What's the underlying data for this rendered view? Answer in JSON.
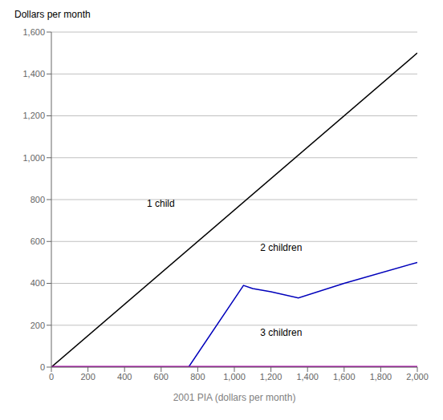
{
  "chart_data": {
    "type": "line",
    "x_label": "2001 PIA (dollars per month)",
    "y_label": "Dollars per month",
    "xlim": [
      0,
      2000
    ],
    "ylim": [
      0,
      1600
    ],
    "xticks": [
      0,
      200,
      400,
      600,
      800,
      {
        "value": 1000,
        "label": "1,000"
      },
      {
        "value": 1200,
        "label": "1,200"
      },
      {
        "value": 1400,
        "label": "1,400"
      },
      {
        "value": 1600,
        "label": "1,600"
      },
      {
        "value": 1800,
        "label": "1,800"
      },
      {
        "value": 2000,
        "label": "2,000"
      }
    ],
    "yticks": [
      0,
      200,
      400,
      600,
      800,
      {
        "value": 1000,
        "label": "1,000"
      },
      {
        "value": 1200,
        "label": "1,200"
      },
      {
        "value": 1400,
        "label": "1,400"
      },
      {
        "value": 1600,
        "label": "1,600"
      }
    ],
    "grid": "y",
    "series": [
      {
        "color": "#000000",
        "x": [
          0,
          2000
        ],
        "values": [
          0,
          1500
        ]
      },
      {
        "color": "#0000bb",
        "x": [
          0,
          750,
          1050,
          1100,
          1200,
          1350,
          1600,
          2000
        ],
        "values": [
          0,
          0,
          390,
          375,
          360,
          330,
          400,
          500
        ]
      },
      {
        "color": "#aa00aa",
        "x": [
          0,
          2000
        ],
        "values": [
          0,
          0
        ]
      }
    ],
    "annotations": [
      {
        "text": "1 child",
        "x": 500,
        "y": 780
      },
      {
        "text": "2 children",
        "x": 1120,
        "y": 570
      },
      {
        "text": "3 children",
        "x": 1120,
        "y": 165
      }
    ]
  }
}
